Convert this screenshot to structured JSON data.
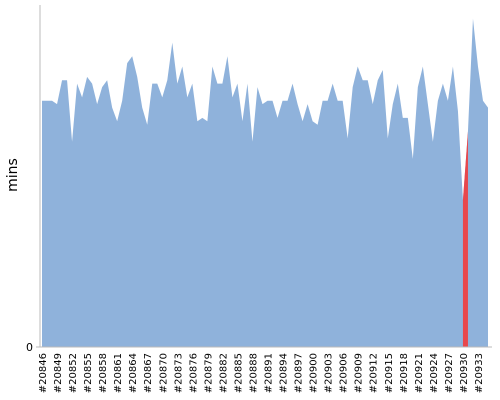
{
  "chart_data": {
    "type": "area",
    "ylabel": "mins",
    "categories": [
      "#20846",
      null,
      null,
      "#20849",
      null,
      null,
      "#20852",
      null,
      null,
      "#20855",
      null,
      null,
      "#20858",
      null,
      null,
      "#20861",
      null,
      null,
      "#20864",
      null,
      null,
      "#20867",
      null,
      null,
      "#20870",
      null,
      null,
      "#20873",
      null,
      null,
      "#20876",
      null,
      null,
      "#20879",
      null,
      null,
      "#20882",
      null,
      null,
      "#20885",
      null,
      null,
      "#20888",
      null,
      null,
      "#20891",
      null,
      null,
      "#20894",
      null,
      null,
      "#20897",
      null,
      null,
      "#20900",
      null,
      null,
      "#20903",
      null,
      null,
      "#20906",
      null,
      null,
      "#20909",
      null,
      null,
      "#20912",
      null,
      null,
      "#20915",
      null,
      null,
      "#20918",
      null,
      null,
      "#20921",
      null,
      null,
      "#20924",
      null,
      null,
      "#20927",
      null,
      null,
      "#20930",
      null,
      null,
      "#20933",
      null,
      null
    ],
    "values": [
      72,
      72,
      72,
      71,
      78,
      78,
      60,
      77,
      73,
      79,
      77,
      71,
      76,
      78,
      70,
      66,
      72,
      83,
      85,
      79,
      70,
      65,
      77,
      77,
      73,
      78,
      89,
      77,
      82,
      73,
      77,
      66,
      67,
      66,
      82,
      77,
      77,
      85,
      73,
      77,
      66,
      77,
      60,
      76,
      71,
      72,
      72,
      67,
      72,
      72,
      77,
      71,
      66,
      71,
      66,
      65,
      72,
      72,
      77,
      72,
      72,
      61,
      76,
      82,
      78,
      78,
      71,
      78,
      81,
      61,
      71,
      77,
      67,
      67,
      55,
      76,
      82,
      71,
      60,
      72,
      77,
      72,
      82,
      69,
      43,
      63,
      96,
      82,
      72,
      70
    ],
    "color": "#8fb2db",
    "highlight_category": "#20930",
    "highlight_color": "#e8474c",
    "ylim": [
      0,
      100
    ],
    "yticks": [
      0
    ]
  }
}
